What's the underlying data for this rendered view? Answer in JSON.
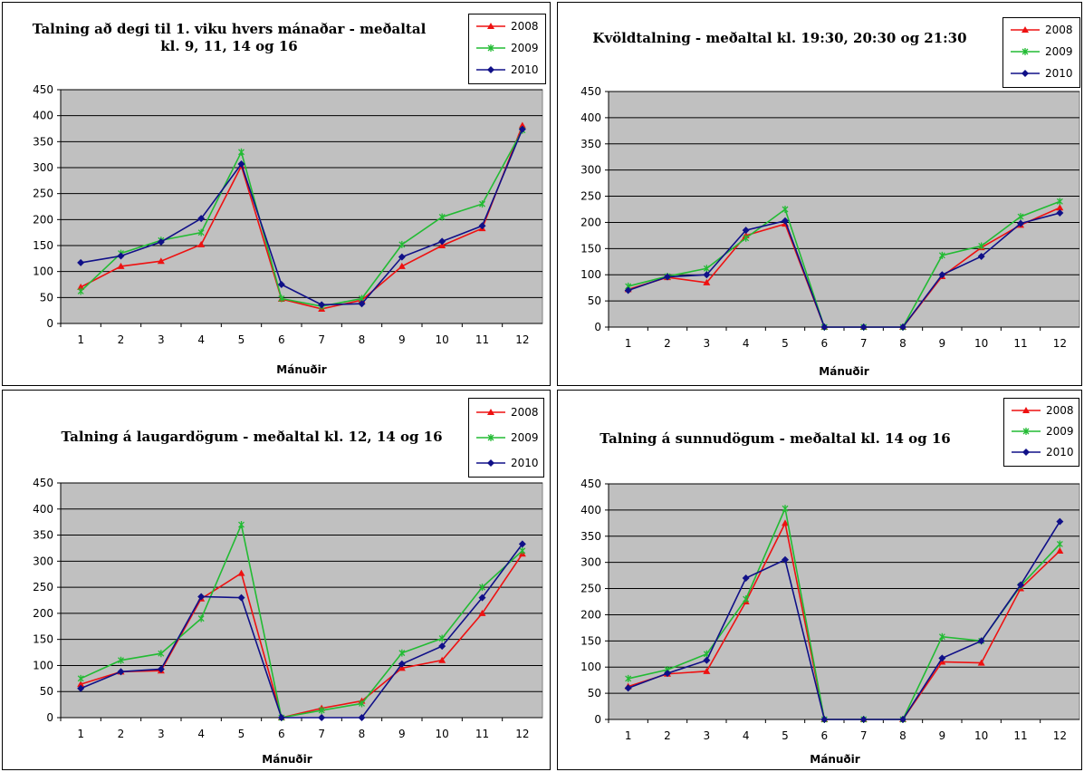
{
  "colors": {
    "plot_bg": "#c0c0c0",
    "grid": "#000000",
    "s2008": "#ee1111",
    "s2009": "#22bb33",
    "s2010": "#101088"
  },
  "chart_data": [
    {
      "type": "line",
      "title_lines": [
        "Talning að degi til 1. viku hvers mánaðar - meðaltal",
        "kl. 9, 11, 14 og 16"
      ],
      "xlabel": "Mánuðir",
      "ylabel": "",
      "categories": [
        "1",
        "2",
        "3",
        "4",
        "5",
        "6",
        "7",
        "8",
        "9",
        "10",
        "11",
        "12"
      ],
      "ylim": [
        0,
        450
      ],
      "yticks": [
        "0",
        "50",
        "100",
        "150",
        "200",
        "250",
        "300",
        "350",
        "400",
        "450"
      ],
      "grid": true,
      "legend_position": "top-right",
      "series": [
        {
          "name": "2008",
          "values": [
            70,
            110,
            120,
            152,
            303,
            47,
            28,
            45,
            110,
            150,
            183,
            381
          ]
        },
        {
          "name": "2009",
          "values": [
            62,
            135,
            160,
            175,
            330,
            48,
            33,
            48,
            152,
            205,
            230,
            372
          ]
        },
        {
          "name": "2010",
          "values": [
            117,
            130,
            157,
            202,
            307,
            75,
            36,
            38,
            128,
            158,
            188,
            374
          ]
        }
      ]
    },
    {
      "type": "line",
      "title_lines": [
        "Kvöldtalning - meðaltal kl. 19:30, 20:30 og 21:30"
      ],
      "xlabel": "Mánuðir",
      "ylabel": "",
      "categories": [
        "1",
        "2",
        "3",
        "4",
        "5",
        "6",
        "7",
        "8",
        "9",
        "10",
        "11",
        "12"
      ],
      "ylim": [
        0,
        450
      ],
      "yticks": [
        "0",
        "50",
        "100",
        "150",
        "200",
        "250",
        "300",
        "350",
        "400",
        "450"
      ],
      "grid": true,
      "legend_position": "top-right",
      "series": [
        {
          "name": "2008",
          "values": [
            72,
            95,
            85,
            175,
            197,
            0,
            0,
            0,
            97,
            152,
            195,
            228
          ]
        },
        {
          "name": "2009",
          "values": [
            78,
            97,
            112,
            170,
            225,
            0,
            0,
            0,
            137,
            155,
            211,
            240
          ]
        },
        {
          "name": "2010",
          "values": [
            70,
            96,
            100,
            185,
            203,
            0,
            0,
            0,
            100,
            135,
            198,
            218
          ]
        }
      ]
    },
    {
      "type": "line",
      "title_lines": [
        "Talning á laugardögum - meðaltal kl. 12, 14 og 16"
      ],
      "xlabel": "Mánuðir",
      "ylabel": "",
      "categories": [
        "1",
        "2",
        "3",
        "4",
        "5",
        "6",
        "7",
        "8",
        "9",
        "10",
        "11",
        "12"
      ],
      "ylim": [
        0,
        450
      ],
      "yticks": [
        "0",
        "50",
        "100",
        "150",
        "200",
        "250",
        "300",
        "350",
        "400",
        "450"
      ],
      "grid": true,
      "legend_position": "top-right",
      "series": [
        {
          "name": "2008",
          "values": [
            64,
            88,
            90,
            228,
            277,
            0,
            18,
            32,
            95,
            110,
            200,
            314
          ]
        },
        {
          "name": "2009",
          "values": [
            75,
            110,
            123,
            190,
            370,
            0,
            14,
            27,
            124,
            152,
            250,
            320
          ]
        },
        {
          "name": "2010",
          "values": [
            56,
            88,
            93,
            232,
            230,
            0,
            0,
            0,
            103,
            137,
            230,
            333
          ]
        }
      ]
    },
    {
      "type": "line",
      "title_lines": [
        "Talning á sunnudögum - meðaltal kl. 14 og 16"
      ],
      "xlabel": "Mánuðir",
      "ylabel": "",
      "categories": [
        "1",
        "2",
        "3",
        "4",
        "5",
        "6",
        "7",
        "8",
        "9",
        "10",
        "11",
        "12"
      ],
      "ylim": [
        0,
        450
      ],
      "yticks": [
        "0",
        "50",
        "100",
        "150",
        "200",
        "250",
        "300",
        "350",
        "400",
        "450"
      ],
      "grid": true,
      "legend_position": "top-right",
      "series": [
        {
          "name": "2008",
          "values": [
            63,
            87,
            92,
            225,
            375,
            0,
            0,
            0,
            110,
            108,
            250,
            322
          ]
        },
        {
          "name": "2009",
          "values": [
            78,
            95,
            125,
            230,
            403,
            0,
            0,
            0,
            158,
            150,
            255,
            335
          ]
        },
        {
          "name": "2010",
          "values": [
            60,
            88,
            113,
            270,
            305,
            0,
            0,
            0,
            117,
            150,
            257,
            378
          ]
        }
      ]
    }
  ]
}
